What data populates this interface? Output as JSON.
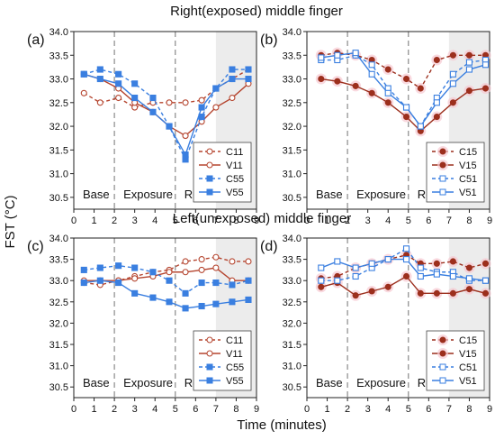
{
  "figure": {
    "top_title": "Right(exposed) middle finger",
    "middle_title": "Left(unexposed) middle finger",
    "ylabel": "FST (°C)",
    "xlabel": "Time (minutes)"
  },
  "chart_data": [
    {
      "type": "line",
      "panel_label": "(a)",
      "phases": [
        "Base",
        "Exposure",
        "Recovery"
      ],
      "phase_boundaries": [
        2,
        5
      ],
      "shaded_region": [
        7,
        9
      ],
      "xlim": [
        0,
        9
      ],
      "ylim": [
        30.25,
        34.0
      ],
      "xticks": [
        0,
        1,
        2,
        3,
        4,
        5,
        6,
        7,
        8,
        9
      ],
      "yticks": [
        30.5,
        31.0,
        31.5,
        32.0,
        32.5,
        33.0,
        33.5,
        34.0
      ],
      "legend": "bottom-right",
      "series": [
        {
          "name": "C11",
          "color": "#b5452f",
          "dashed": true,
          "marker": "circle-open",
          "x": [
            0.5,
            1.3,
            2.2,
            3.0,
            3.9,
            4.7,
            5.5,
            6.3,
            7.0,
            7.8,
            8.6
          ],
          "y": [
            32.7,
            32.5,
            32.6,
            32.4,
            32.5,
            32.5,
            32.5,
            32.55,
            32.8,
            33.0,
            33.2
          ]
        },
        {
          "name": "V11",
          "color": "#b5452f",
          "dashed": false,
          "marker": "circle-open",
          "x": [
            0.5,
            1.3,
            2.2,
            3.0,
            3.9,
            4.7,
            5.5,
            6.3,
            7.0,
            7.8,
            8.6
          ],
          "y": [
            33.1,
            33.0,
            32.8,
            32.5,
            32.3,
            32.0,
            31.8,
            32.1,
            32.4,
            32.6,
            32.9
          ]
        },
        {
          "name": "C55",
          "color": "#3a7fe0",
          "dashed": true,
          "marker": "square-filled",
          "x": [
            0.5,
            1.3,
            2.2,
            3.0,
            3.9,
            4.7,
            5.5,
            6.3,
            7.0,
            7.8,
            8.6
          ],
          "y": [
            33.1,
            33.2,
            33.1,
            32.9,
            32.6,
            32.0,
            31.3,
            32.2,
            32.8,
            33.2,
            33.2
          ]
        },
        {
          "name": "V55",
          "color": "#3a7fe0",
          "dashed": false,
          "marker": "square-filled",
          "x": [
            0.5,
            1.3,
            2.2,
            3.0,
            3.9,
            4.7,
            5.5,
            6.3,
            7.0,
            7.8,
            8.6
          ],
          "y": [
            33.1,
            33.0,
            32.9,
            32.6,
            32.3,
            32.0,
            31.4,
            32.4,
            32.8,
            33.0,
            33.0
          ]
        }
      ]
    },
    {
      "type": "line",
      "panel_label": "(b)",
      "phases": [
        "Base",
        "Exposure",
        "Recovery"
      ],
      "phase_boundaries": [
        2,
        5
      ],
      "shaded_region": [
        7,
        9
      ],
      "xlim": [
        0,
        9
      ],
      "ylim": [
        30.25,
        34.0
      ],
      "xticks": [
        0,
        1,
        2,
        3,
        4,
        5,
        6,
        7,
        8,
        9
      ],
      "yticks": [
        30.5,
        31.0,
        31.5,
        32.0,
        32.5,
        33.0,
        33.5,
        34.0
      ],
      "legend": "bottom-right",
      "series": [
        {
          "name": "C15",
          "color": "#9c2f1d",
          "dashed": true,
          "marker": "circle-filled",
          "x": [
            0.7,
            1.5,
            2.4,
            3.2,
            4.0,
            4.9,
            5.6,
            6.4,
            7.2,
            8.0,
            8.8
          ],
          "y": [
            33.5,
            33.55,
            33.5,
            33.4,
            33.2,
            33.0,
            32.8,
            33.4,
            33.5,
            33.5,
            33.5
          ]
        },
        {
          "name": "V15",
          "color": "#9c2f1d",
          "dashed": false,
          "marker": "circle-filled",
          "x": [
            0.7,
            1.5,
            2.4,
            3.2,
            4.0,
            4.9,
            5.6,
            6.4,
            7.2,
            8.0,
            8.8
          ],
          "y": [
            33.0,
            32.95,
            32.85,
            32.7,
            32.5,
            32.2,
            31.9,
            32.2,
            32.5,
            32.75,
            32.8
          ]
        },
        {
          "name": "C51",
          "color": "#3a7fe0",
          "dashed": true,
          "marker": "square-open",
          "x": [
            0.7,
            1.5,
            2.4,
            3.2,
            4.0,
            4.9,
            5.6,
            6.4,
            7.2,
            8.0,
            8.8
          ],
          "y": [
            33.4,
            33.4,
            33.5,
            33.3,
            32.8,
            32.4,
            32.0,
            32.6,
            33.1,
            33.35,
            33.4
          ]
        },
        {
          "name": "V51",
          "color": "#3a7fe0",
          "dashed": false,
          "marker": "square-open",
          "x": [
            0.7,
            1.5,
            2.4,
            3.2,
            4.0,
            4.9,
            5.6,
            6.4,
            7.2,
            8.0,
            8.8
          ],
          "y": [
            33.45,
            33.5,
            33.55,
            33.1,
            32.7,
            32.4,
            32.0,
            32.5,
            32.9,
            33.2,
            33.3
          ]
        }
      ]
    },
    {
      "type": "line",
      "panel_label": "(c)",
      "phases": [
        "Base",
        "Exposure",
        "Recovery"
      ],
      "phase_boundaries": [
        2,
        5
      ],
      "shaded_region": [
        7,
        9
      ],
      "xlim": [
        0,
        9
      ],
      "ylim": [
        30.25,
        34.0
      ],
      "xticks": [
        0,
        1,
        2,
        3,
        4,
        5,
        6,
        7,
        8,
        9
      ],
      "yticks": [
        30.5,
        31.0,
        31.5,
        32.0,
        32.5,
        33.0,
        33.5,
        34.0
      ],
      "legend": "bottom-right",
      "series": [
        {
          "name": "C11",
          "color": "#b5452f",
          "dashed": true,
          "marker": "circle-open",
          "x": [
            0.5,
            1.3,
            2.2,
            3.0,
            3.9,
            4.7,
            5.5,
            6.3,
            7.0,
            7.8,
            8.6
          ],
          "y": [
            32.95,
            32.9,
            33.0,
            33.1,
            33.2,
            33.25,
            33.45,
            33.5,
            33.55,
            33.45,
            33.45
          ]
        },
        {
          "name": "V11",
          "color": "#b5452f",
          "dashed": false,
          "marker": "circle-open",
          "x": [
            0.5,
            1.3,
            2.2,
            3.0,
            3.9,
            4.7,
            5.5,
            6.3,
            7.0,
            7.8,
            8.6
          ],
          "y": [
            33.0,
            33.0,
            33.0,
            33.05,
            33.1,
            33.2,
            33.2,
            33.25,
            33.3,
            33.0,
            33.0
          ]
        },
        {
          "name": "C55",
          "color": "#3a7fe0",
          "dashed": true,
          "marker": "square-filled",
          "x": [
            0.5,
            1.3,
            2.2,
            3.0,
            3.9,
            4.7,
            5.5,
            6.3,
            7.0,
            7.8,
            8.6
          ],
          "y": [
            33.25,
            33.3,
            33.35,
            33.3,
            33.2,
            33.0,
            32.7,
            32.95,
            32.95,
            32.9,
            33.0
          ]
        },
        {
          "name": "V55",
          "color": "#3a7fe0",
          "dashed": false,
          "marker": "square-filled",
          "x": [
            0.5,
            1.3,
            2.2,
            3.0,
            3.9,
            4.7,
            5.5,
            6.3,
            7.0,
            7.8,
            8.6
          ],
          "y": [
            32.95,
            33.0,
            32.95,
            32.7,
            32.6,
            32.5,
            32.35,
            32.4,
            32.45,
            32.5,
            32.55
          ]
        }
      ]
    },
    {
      "type": "line",
      "panel_label": "(d)",
      "phases": [
        "Base",
        "Exposure",
        "Recovery"
      ],
      "phase_boundaries": [
        2,
        5
      ],
      "shaded_region": [
        7,
        9
      ],
      "xlim": [
        0,
        9
      ],
      "ylim": [
        30.25,
        34.0
      ],
      "xticks": [
        0,
        1,
        2,
        3,
        4,
        5,
        6,
        7,
        8,
        9
      ],
      "yticks": [
        30.5,
        31.0,
        31.5,
        32.0,
        32.5,
        33.0,
        33.5,
        34.0
      ],
      "legend": "bottom-right",
      "series": [
        {
          "name": "C15",
          "color": "#9c2f1d",
          "dashed": true,
          "marker": "circle-filled",
          "x": [
            0.7,
            1.5,
            2.4,
            3.2,
            4.0,
            4.9,
            5.6,
            6.4,
            7.2,
            8.0,
            8.8
          ],
          "y": [
            33.05,
            33.1,
            33.3,
            33.4,
            33.5,
            33.6,
            33.4,
            33.4,
            33.45,
            33.3,
            33.4
          ]
        },
        {
          "name": "V15",
          "color": "#9c2f1d",
          "dashed": false,
          "marker": "circle-filled",
          "x": [
            0.7,
            1.5,
            2.4,
            3.2,
            4.0,
            4.9,
            5.6,
            6.4,
            7.2,
            8.0,
            8.8
          ],
          "y": [
            32.85,
            32.95,
            32.65,
            32.75,
            32.85,
            33.1,
            32.7,
            32.7,
            32.7,
            32.8,
            32.7
          ]
        },
        {
          "name": "C51",
          "color": "#3a7fe0",
          "dashed": true,
          "marker": "square-open",
          "x": [
            0.7,
            1.5,
            2.4,
            3.2,
            4.0,
            4.9,
            5.6,
            6.4,
            7.2,
            8.0,
            8.8
          ],
          "y": [
            33.0,
            33.0,
            33.1,
            33.3,
            33.5,
            33.75,
            33.3,
            33.2,
            33.2,
            33.0,
            33.0
          ]
        },
        {
          "name": "V51",
          "color": "#3a7fe0",
          "dashed": false,
          "marker": "square-open",
          "x": [
            0.7,
            1.5,
            2.4,
            3.2,
            4.0,
            4.9,
            5.6,
            6.4,
            7.2,
            8.0,
            8.8
          ],
          "y": [
            33.3,
            33.45,
            33.3,
            33.4,
            33.5,
            33.5,
            33.1,
            33.15,
            33.1,
            33.05,
            33.0
          ]
        }
      ]
    }
  ]
}
